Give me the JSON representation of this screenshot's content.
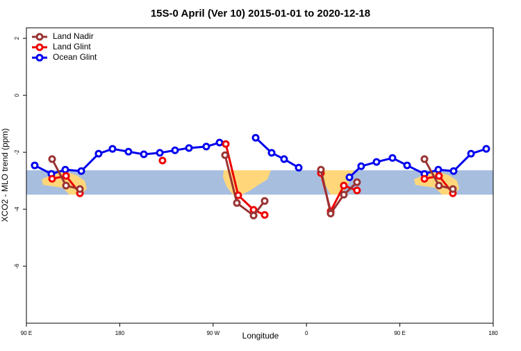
{
  "chart_data": {
    "type": "line",
    "title": "15S-0 April (Ver 10)   2015-01-01 to 2020-12-18",
    "x_label": "Longitude",
    "y_label": "XCO2 - MLO trend (ppm)",
    "xlim": [
      90,
      540
    ],
    "xticks": [
      {
        "value": 90,
        "label": "90 E"
      },
      180,
      {
        "value": 270,
        "label": "90 W"
      },
      {
        "value": 360,
        "label": "0"
      },
      {
        "value": 450,
        "label": "90 E"
      },
      {
        "value": 540,
        "label": "180"
      }
    ],
    "ylim": [
      -8,
      2.37
    ],
    "yticks": [
      2,
      0,
      -2,
      -4,
      -6
    ],
    "legend": "top-left",
    "series": [
      {
        "name": "Land Nadir",
        "color": "#993333",
        "x": [
          114.8,
          128.2,
          141.6,
          null,
          281.5,
          292.9,
          309.0,
          319.7,
          null,
          373.9,
          383.3,
          396.0,
          408.7,
          null,
          473.7,
          487.7,
          501.1
        ],
        "values": [
          -2.24,
          -3.17,
          -3.29,
          null,
          -2.1,
          -3.78,
          -4.22,
          -3.71,
          null,
          -2.61,
          -4.15,
          -3.49,
          -3.05,
          null,
          -2.24,
          -3.17,
          -3.29
        ]
      },
      {
        "name": "Land Glint",
        "color": "#ee0000",
        "x": [
          114.8,
          128.2,
          141.6,
          null,
          221.2,
          null,
          282.2,
          294.2,
          309.0,
          319.7,
          null,
          373.9,
          383.3,
          396.0,
          408.7,
          null,
          473.7,
          487.7,
          501.1
        ],
        "values": [
          -2.93,
          -2.83,
          -3.44,
          null,
          -2.29,
          null,
          -1.71,
          -3.51,
          -4.02,
          -4.2,
          null,
          -2.73,
          -4.07,
          -3.17,
          -3.34,
          null,
          -2.93,
          -2.83,
          -3.44
        ]
      },
      {
        "name": "Ocean Glint",
        "color": "#0000ee",
        "x": [
          98.0,
          114.1,
          127.5,
          142.9,
          159.6,
          173.0,
          188.4,
          203.2,
          218.6,
          233.3,
          246.7,
          263.4,
          276.2,
          null,
          311.0,
          326.4,
          338.4,
          352.5,
          365.9,
          null,
          401.4,
          412.7,
          427.5,
          442.9,
          457.0,
          473.7,
          487.1,
          501.8,
          518.6,
          533.3
        ],
        "values": [
          -2.46,
          -2.76,
          -2.61,
          -2.66,
          -2.05,
          -1.88,
          -1.98,
          -2.07,
          -2.02,
          -1.93,
          -1.85,
          -1.8,
          -1.66,
          null,
          -1.49,
          -2.02,
          -2.24,
          -2.54,
          null,
          null,
          -2.88,
          -2.49,
          -2.34,
          -2.2,
          -2.46,
          -2.76,
          -2.61,
          -2.66,
          -2.05,
          -1.88
        ]
      }
    ]
  }
}
